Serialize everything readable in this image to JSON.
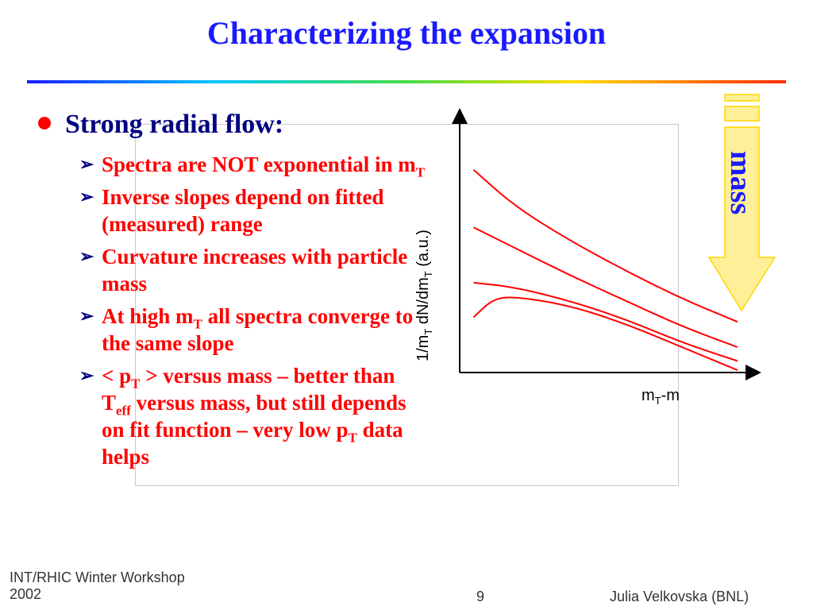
{
  "slide": {
    "title": "Characterizing the expansion",
    "main_bullet": "Strong radial flow:",
    "sub_bullets": [
      {
        "parts": [
          {
            "t": "Spectra are NOT exponential in m"
          },
          {
            "sub": "T"
          }
        ]
      },
      {
        "parts": [
          {
            "t": "Inverse slopes depend on fitted (measured) range"
          }
        ]
      },
      {
        "parts": [
          {
            "t": "Curvature increases with particle mass"
          }
        ]
      },
      {
        "parts": [
          {
            "t": "At high m"
          },
          {
            "sub": "T"
          },
          {
            "t": " all spectra converge to the same slope"
          }
        ]
      },
      {
        "parts": [
          {
            "t": "< p"
          },
          {
            "sub": "T"
          },
          {
            "t": " > versus mass – better than T"
          },
          {
            "sub": "eff"
          },
          {
            "t": " versus mass, but still depends on fit function – very low p"
          },
          {
            "sub": "T"
          },
          {
            "t": " data helps"
          }
        ]
      }
    ],
    "footer": {
      "left_line1": "INT/RHIC Winter Workshop",
      "left_line2": "2002",
      "page_number": "9",
      "right": "Julia Velkovska (BNL)"
    }
  },
  "chart_data": {
    "type": "line",
    "ylabel_main": "1/m",
    "ylabel_sub": "T",
    "ylabel_rest": " dN/dm",
    "ylabel_sub2": "T",
    "ylabel_tail": " (a.u.)",
    "xlabel_main": "m",
    "xlabel_sub": "T",
    "xlabel_tail": "-m",
    "arrow_label": "mass",
    "colors": {
      "curves": "#ff0000",
      "arrow_fill": "#ffef99",
      "arrow_stroke": "#ffd700",
      "arrow_text": "#1a1aff",
      "axes": "#000000"
    },
    "note": "schematic curves, no numeric axis values shown",
    "series": [
      {
        "x": [
          0.05,
          0.2,
          0.4,
          0.6,
          0.8,
          1.0
        ],
        "y": [
          0.88,
          0.72,
          0.57,
          0.44,
          0.32,
          0.22
        ]
      },
      {
        "x": [
          0.05,
          0.2,
          0.4,
          0.6,
          0.8,
          1.0
        ],
        "y": [
          0.63,
          0.54,
          0.42,
          0.31,
          0.2,
          0.11
        ]
      },
      {
        "x": [
          0.05,
          0.2,
          0.4,
          0.6,
          0.8,
          1.0
        ],
        "y": [
          0.39,
          0.37,
          0.31,
          0.23,
          0.13,
          0.05
        ]
      },
      {
        "x": [
          0.05,
          0.12,
          0.2,
          0.4,
          0.6,
          0.8,
          1.0
        ],
        "y": [
          0.24,
          0.32,
          0.33,
          0.29,
          0.21,
          0.11,
          0.01
        ]
      }
    ]
  }
}
